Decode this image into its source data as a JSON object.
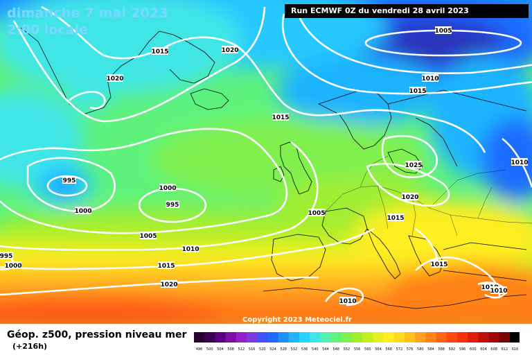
{
  "header": {
    "date_title": "dimanche 7 mai 2023",
    "time_title": "2:00 locale",
    "run_info": "Run ECMWF 0Z du vendredi 28 avril 2023",
    "copyright": "Copyright 2023 Meteociel.fr"
  },
  "legend": {
    "title": "Géop. z500, pression niveau mer",
    "lead_time": "(+216h)",
    "ticks": [
      "496",
      "500",
      "504",
      "508",
      "512",
      "516",
      "520",
      "524",
      "528",
      "532",
      "536",
      "540",
      "544",
      "548",
      "552",
      "556",
      "560",
      "564",
      "568",
      "572",
      "576",
      "580",
      "584",
      "588",
      "592",
      "596",
      "600",
      "604",
      "608",
      "612",
      "616"
    ],
    "colors": [
      "#2a0030",
      "#3c0050",
      "#5a0080",
      "#7a10a8",
      "#9620c8",
      "#7a3ae0",
      "#4050ff",
      "#1e6cff",
      "#1e90ff",
      "#1eb4ff",
      "#28d2ff",
      "#40e6e6",
      "#50f0b0",
      "#60f27a",
      "#80f050",
      "#a0ee30",
      "#c4f020",
      "#e6f020",
      "#ffee20",
      "#ffd820",
      "#ffc020",
      "#ffa020",
      "#ff8218",
      "#ff6414",
      "#ff4810",
      "#f8300c",
      "#e01c0a",
      "#c00e08",
      "#a00806",
      "#780404",
      "#000000"
    ]
  },
  "isobars": [
    {
      "label": "1005",
      "text": "1005"
    },
    {
      "label": "1010",
      "text": "1010"
    },
    {
      "label": "1015",
      "text": "1015"
    },
    {
      "label": "1015",
      "text": "1015"
    },
    {
      "label": "1020",
      "text": "1020"
    },
    {
      "label": "1015",
      "text": "1015"
    },
    {
      "label": "1020",
      "text": "1020"
    },
    {
      "label": "1025",
      "text": "1025"
    },
    {
      "label": "1010",
      "text": "1010"
    },
    {
      "label": "995",
      "text": "995"
    },
    {
      "label": "1000",
      "text": "1000"
    },
    {
      "label": "1000",
      "text": "1000"
    },
    {
      "label": "995",
      "text": "995"
    },
    {
      "label": "1005",
      "text": "1005"
    },
    {
      "label": "1005",
      "text": "1005"
    },
    {
      "label": "1010",
      "text": "1010"
    },
    {
      "label": "1015",
      "text": "1015"
    },
    {
      "label": "1020",
      "text": "1020"
    },
    {
      "label": "995",
      "text": "995"
    },
    {
      "label": "1000",
      "text": "1000"
    },
    {
      "label": "1020",
      "text": "1020"
    },
    {
      "label": "1015",
      "text": "1015"
    },
    {
      "label": "1010",
      "text": "1010"
    },
    {
      "label": "1015",
      "text": "1015"
    },
    {
      "label": "1010",
      "text": "1010"
    },
    {
      "label": "1010",
      "text": "1010"
    }
  ]
}
